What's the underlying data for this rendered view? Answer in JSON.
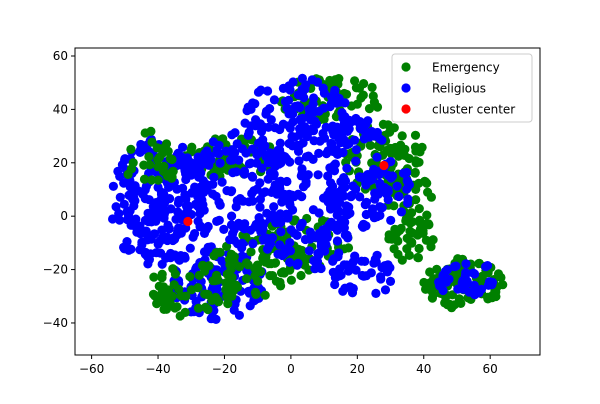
{
  "chart_data": {
    "type": "scatter",
    "title": "",
    "xlabel": "",
    "ylabel": "",
    "xlim": [
      -65,
      75
    ],
    "ylim": [
      -52,
      63
    ],
    "xticks": [
      -60,
      -40,
      -20,
      0,
      20,
      40,
      60
    ],
    "yticks": [
      -40,
      -20,
      0,
      20,
      40,
      60
    ],
    "grid": false,
    "legend_position": "top-right",
    "series": [
      {
        "name": "Emergency",
        "color": "#008000",
        "regions": [
          {
            "cx": -18,
            "cy": 22,
            "rx": 14,
            "ry": 8,
            "count": 55
          },
          {
            "cx": 12,
            "cy": 44,
            "rx": 16,
            "ry": 8,
            "count": 70
          },
          {
            "cx": 28,
            "cy": 22,
            "rx": 12,
            "ry": 14,
            "count": 90
          },
          {
            "cx": 36,
            "cy": 0,
            "rx": 8,
            "ry": 18,
            "count": 70
          },
          {
            "cx": 52,
            "cy": -25,
            "rx": 12,
            "ry": 10,
            "count": 95
          },
          {
            "cx": -10,
            "cy": -18,
            "rx": 16,
            "ry": 12,
            "count": 75
          },
          {
            "cx": -30,
            "cy": -28,
            "rx": 14,
            "ry": 10,
            "count": 60
          },
          {
            "cx": 4,
            "cy": -10,
            "rx": 14,
            "ry": 10,
            "count": 45
          },
          {
            "cx": -42,
            "cy": 20,
            "rx": 8,
            "ry": 12,
            "count": 30
          }
        ]
      },
      {
        "name": "Religious",
        "color": "#0000ff",
        "regions": [
          {
            "cx": -40,
            "cy": 5,
            "rx": 15,
            "ry": 24,
            "count": 210
          },
          {
            "cx": -22,
            "cy": -25,
            "rx": 14,
            "ry": 14,
            "count": 110
          },
          {
            "cx": -16,
            "cy": 10,
            "rx": 16,
            "ry": 22,
            "count": 150
          },
          {
            "cx": 2,
            "cy": 36,
            "rx": 16,
            "ry": 16,
            "count": 130
          },
          {
            "cx": 4,
            "cy": -2,
            "rx": 14,
            "ry": 20,
            "count": 120
          },
          {
            "cx": 20,
            "cy": 15,
            "rx": 10,
            "ry": 22,
            "count": 110
          },
          {
            "cx": 22,
            "cy": -22,
            "rx": 10,
            "ry": 8,
            "count": 40
          },
          {
            "cx": 54,
            "cy": -24,
            "rx": 10,
            "ry": 7,
            "count": 35
          },
          {
            "cx": 30,
            "cy": 10,
            "rx": 6,
            "ry": 12,
            "count": 30
          }
        ]
      },
      {
        "name": "cluster center",
        "color": "#ff0000",
        "points": [
          {
            "x": -31,
            "y": -2
          },
          {
            "x": 28,
            "y": 19
          }
        ]
      }
    ]
  }
}
